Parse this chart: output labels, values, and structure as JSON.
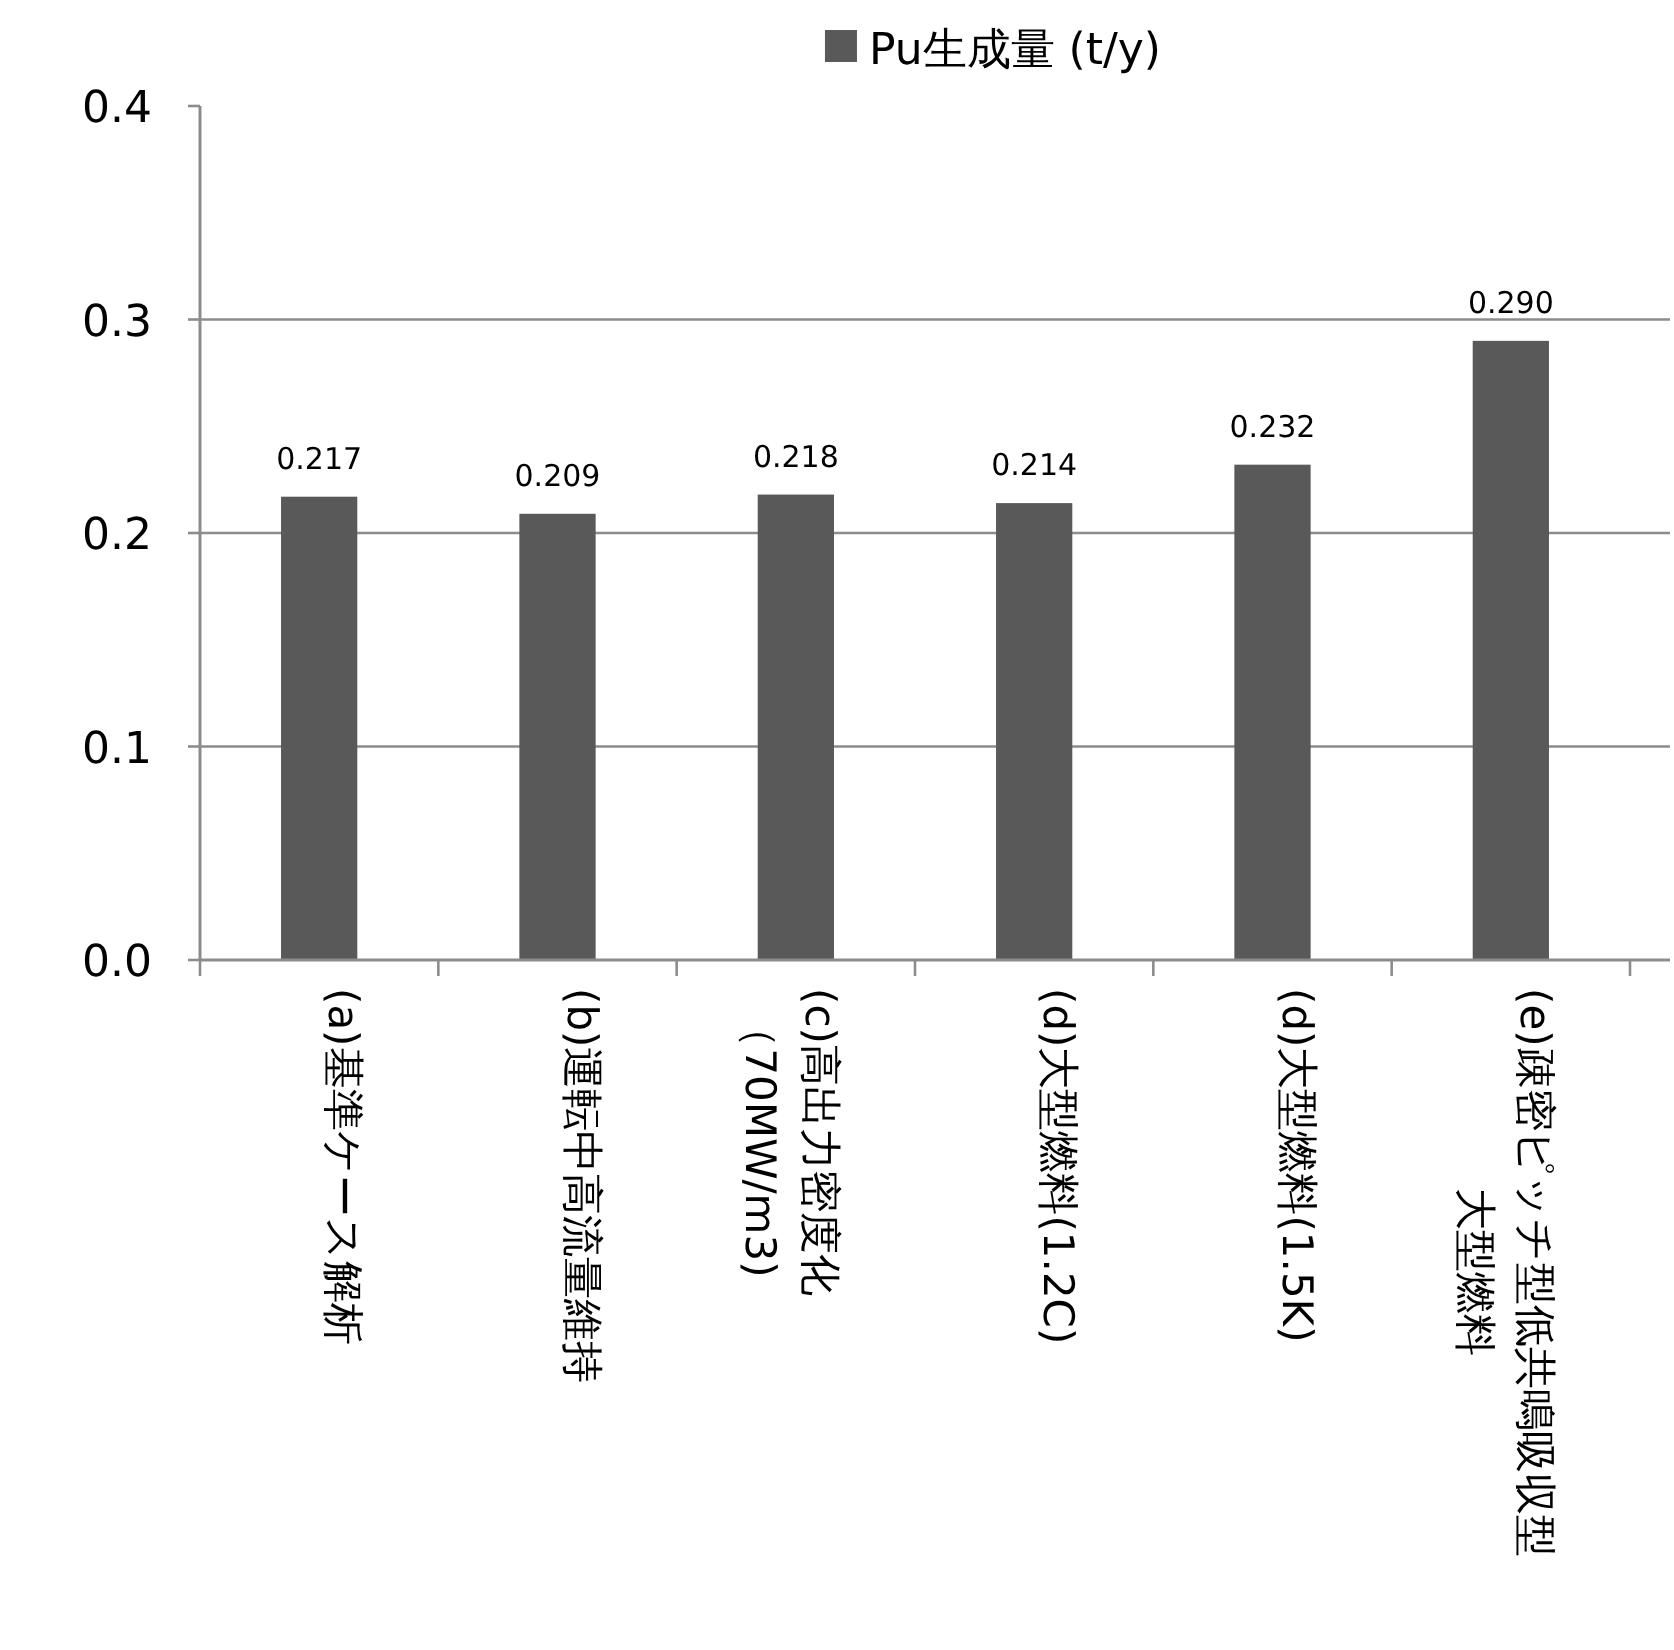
{
  "chart_data": {
    "type": "bar",
    "categories": [
      "(a)基準ケース解析",
      "(b)運転中高流量維持",
      "(c)高出力密度化（70MW/m3)",
      "(d)大型燃料(1.2C)",
      "(d)大型燃料(1.5K)",
      "(e)疎密ピッチ型低共鳴吸収型大型燃料"
    ],
    "series": [
      {
        "name": "Pu生成量 (t/y)",
        "color": "#595959",
        "values": [
          0.217,
          0.209,
          0.218,
          0.214,
          0.232,
          0.29
        ]
      }
    ],
    "value_labels": [
      "0.217",
      "0.209",
      "0.218",
      "0.214",
      "0.232",
      "0.290"
    ],
    "ylim": [
      0,
      0.4
    ],
    "yticks": [
      {
        "value": 0,
        "label": "0.0"
      },
      {
        "value": 0.1,
        "label": "0.1"
      },
      {
        "value": 0.2,
        "label": "0.2"
      },
      {
        "value": 0.3,
        "label": "0.3"
      },
      {
        "value": 0.4,
        "label": "0.4"
      }
    ],
    "grid": "y",
    "legend": "top"
  }
}
